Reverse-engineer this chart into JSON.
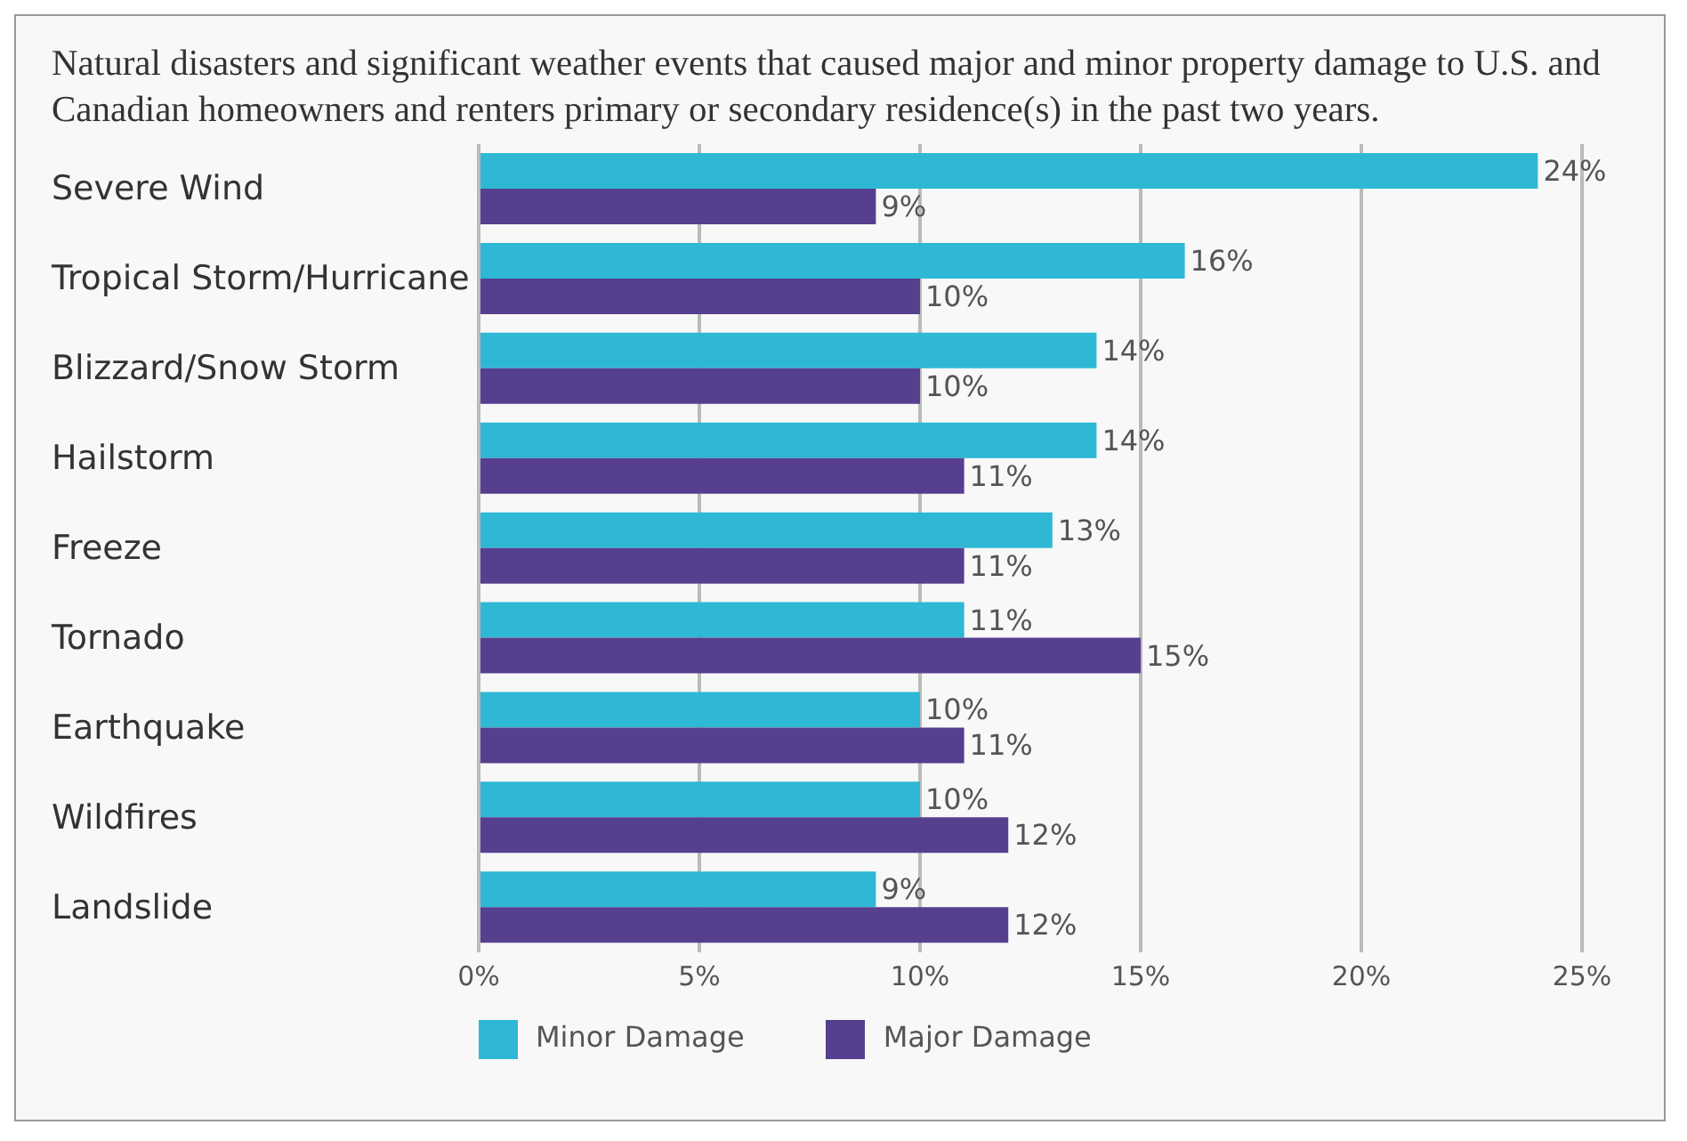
{
  "chart_data": {
    "type": "bar",
    "orientation": "horizontal",
    "title": "Natural disasters and significant weather events that caused major and minor property damage to U.S. and Canadian homeowners and renters primary or secondary residence(s) in the past two years.",
    "categories": [
      "Severe Wind",
      "Tropical Storm/Hurricane",
      "Blizzard/Snow Storm",
      "Hailstorm",
      "Freeze",
      "Tornado",
      "Earthquake",
      "Wildfires",
      "Landslide"
    ],
    "series": [
      {
        "name": "Minor Damage",
        "color": "#2eb8d5",
        "values": [
          24,
          16,
          14,
          14,
          13,
          11,
          10,
          10,
          9
        ],
        "value_labels": [
          "24%",
          "16%",
          "14%",
          "14%",
          "13%",
          "11%",
          "10%",
          "10%",
          "9%"
        ]
      },
      {
        "name": "Major Damage",
        "color": "#563f8f",
        "values": [
          9,
          10,
          10,
          11,
          11,
          15,
          11,
          12,
          12
        ],
        "value_labels": [
          "9%",
          "10%",
          "10%",
          "11%",
          "11%",
          "15%",
          "11%",
          "12%",
          "12%"
        ]
      }
    ],
    "xlim": [
      0,
      25
    ],
    "xticks": [
      {
        "value": 0,
        "label": "0%"
      },
      {
        "value": 5,
        "label": "5%"
      },
      {
        "value": 10,
        "label": "10%"
      },
      {
        "value": 15,
        "label": "15%"
      },
      {
        "value": 20,
        "label": "20%"
      },
      {
        "value": 25,
        "label": "25%"
      }
    ],
    "grid": "x",
    "legend": "bottom"
  }
}
